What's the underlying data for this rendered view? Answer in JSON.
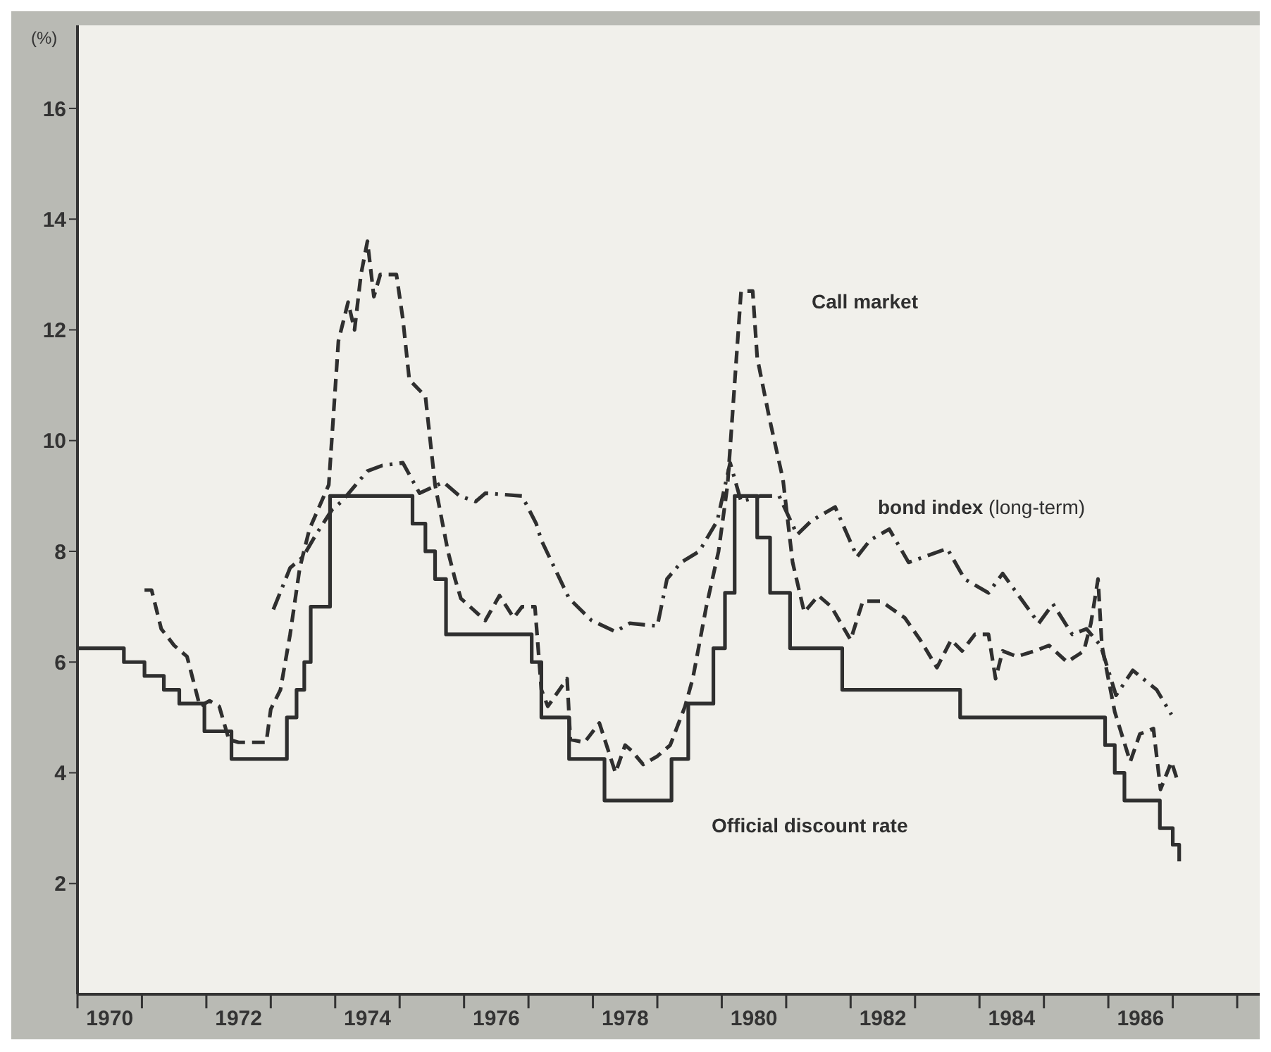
{
  "chart_data": {
    "type": "line",
    "ylabel": "(%)",
    "xlim": [
      1970,
      1988.35
    ],
    "ylim": [
      0,
      17.5
    ],
    "yticks": [
      2,
      4,
      6,
      8,
      10,
      12,
      14,
      16
    ],
    "xticks": [
      {
        "value": 1970,
        "label": null
      },
      {
        "value": 1970.5,
        "label": "1970"
      },
      {
        "value": 1971,
        "label": null
      },
      {
        "value": 1972,
        "label": null
      },
      {
        "value": 1972.5,
        "label": "1972"
      },
      {
        "value": 1973,
        "label": null
      },
      {
        "value": 1974,
        "label": null
      },
      {
        "value": 1974.5,
        "label": "1974"
      },
      {
        "value": 1975,
        "label": null
      },
      {
        "value": 1976,
        "label": null
      },
      {
        "value": 1976.5,
        "label": "1976"
      },
      {
        "value": 1977,
        "label": null
      },
      {
        "value": 1978,
        "label": null
      },
      {
        "value": 1978.5,
        "label": "1978"
      },
      {
        "value": 1979,
        "label": null
      },
      {
        "value": 1980,
        "label": null
      },
      {
        "value": 1980.5,
        "label": "1980"
      },
      {
        "value": 1981,
        "label": null
      },
      {
        "value": 1982,
        "label": null
      },
      {
        "value": 1982.5,
        "label": "1982"
      },
      {
        "value": 1983,
        "label": null
      },
      {
        "value": 1984,
        "label": null
      },
      {
        "value": 1984.5,
        "label": "1984"
      },
      {
        "value": 1985,
        "label": null
      },
      {
        "value": 1986,
        "label": null
      },
      {
        "value": 1986.5,
        "label": "1986"
      },
      {
        "value": 1987,
        "label": null
      },
      {
        "value": 1988,
        "label": null
      }
    ],
    "grid": false,
    "legend": false,
    "marker": "none",
    "series": [
      {
        "name": "Call market",
        "type": "line",
        "line_style": "dashed",
        "color": "#2f2f2f",
        "x": [
          1971.04,
          1971.15,
          1971.3,
          1971.5,
          1971.7,
          1971.9,
          1972.05,
          1972.2,
          1972.35,
          1972.5,
          1972.93,
          1973.0,
          1973.15,
          1973.3,
          1973.45,
          1973.6,
          1973.9,
          1974.05,
          1974.2,
          1974.3,
          1974.4,
          1974.5,
          1974.6,
          1974.7,
          1974.95,
          1975.05,
          1975.15,
          1975.4,
          1975.55,
          1975.75,
          1975.86,
          1975.95,
          1976.33,
          1976.55,
          1976.77,
          1976.9,
          1977.1,
          1977.2,
          1977.3,
          1977.6,
          1977.65,
          1977.87,
          1978.1,
          1978.35,
          1978.5,
          1978.6,
          1978.78,
          1979.0,
          1979.2,
          1979.43,
          1979.55,
          1979.76,
          1979.95,
          1980.09,
          1980.3,
          1980.48,
          1980.55,
          1980.74,
          1980.95,
          1981.1,
          1981.28,
          1981.5,
          1981.7,
          1982.0,
          1982.19,
          1982.47,
          1982.84,
          1983.08,
          1983.34,
          1983.56,
          1983.73,
          1983.93,
          1984.14,
          1984.25,
          1984.36,
          1984.58,
          1984.86,
          1985.08,
          1985.36,
          1985.62,
          1985.73,
          1985.84,
          1985.9,
          1986.1,
          1986.34,
          1986.49,
          1986.7,
          1986.81,
          1986.98,
          1987.09
        ],
        "values": [
          7.3,
          7.3,
          6.6,
          6.3,
          6.1,
          5.2,
          5.3,
          5.2,
          4.6,
          4.55,
          4.55,
          5.15,
          5.5,
          6.5,
          7.7,
          8.4,
          9.2,
          11.8,
          12.5,
          12.0,
          13.0,
          13.6,
          12.6,
          13.0,
          13.0,
          12.2,
          11.1,
          10.8,
          9.2,
          8.0,
          7.5,
          7.15,
          6.75,
          7.2,
          6.8,
          7.0,
          7.0,
          5.5,
          5.2,
          5.7,
          4.6,
          4.55,
          4.9,
          4.0,
          4.5,
          4.4,
          4.15,
          4.3,
          4.5,
          5.2,
          5.7,
          7.0,
          8.0,
          9.2,
          12.7,
          12.7,
          11.5,
          10.4,
          9.3,
          7.8,
          6.9,
          7.2,
          7.0,
          6.4,
          7.1,
          7.1,
          6.8,
          6.4,
          5.9,
          6.4,
          6.2,
          6.5,
          6.5,
          5.7,
          6.2,
          6.1,
          6.2,
          6.3,
          6.0,
          6.2,
          6.7,
          7.5,
          6.3,
          5.1,
          4.2,
          4.7,
          4.8,
          3.7,
          4.2,
          3.8
        ]
      },
      {
        "name": "bond index (long-term)",
        "type": "line",
        "line_style": "dashdot",
        "color": "#2f2f2f",
        "x": [
          1973.04,
          1973.3,
          1973.5,
          1973.7,
          1973.95,
          1974.1,
          1974.5,
          1974.73,
          1975.05,
          1975.31,
          1975.68,
          1975.93,
          1976.18,
          1976.33,
          1976.9,
          1977.12,
          1977.2,
          1977.63,
          1977.98,
          1978.35,
          1978.57,
          1979.0,
          1979.15,
          1979.37,
          1979.65,
          1979.93,
          1980.13,
          1980.3,
          1980.6,
          1980.89,
          1981.17,
          1981.39,
          1981.76,
          1982.1,
          1982.3,
          1982.6,
          1982.9,
          1983.5,
          1983.77,
          1984.14,
          1984.36,
          1984.92,
          1985.14,
          1985.44,
          1985.66,
          1985.88,
          1986.12,
          1986.38,
          1986.75,
          1986.98
        ],
        "values": [
          6.95,
          7.7,
          7.9,
          8.3,
          8.75,
          8.9,
          9.45,
          9.55,
          9.6,
          9.05,
          9.25,
          9.0,
          8.9,
          9.05,
          9.0,
          8.5,
          8.2,
          7.15,
          6.75,
          6.55,
          6.7,
          6.65,
          7.5,
          7.8,
          8.0,
          8.55,
          9.6,
          8.9,
          9.0,
          9.0,
          8.3,
          8.55,
          8.8,
          7.9,
          8.2,
          8.4,
          7.8,
          8.05,
          7.5,
          7.25,
          7.6,
          6.7,
          7.05,
          6.5,
          6.6,
          6.3,
          5.4,
          5.85,
          5.5,
          5.05
        ]
      },
      {
        "name": "Official discount rate",
        "type": "step",
        "line_style": "solid",
        "color": "#2f2f2f",
        "x": [
          1970.0,
          1970.72,
          1971.04,
          1971.34,
          1971.58,
          1971.97,
          1972.39,
          1973.25,
          1973.4,
          1973.52,
          1973.62,
          1973.92,
          1975.2,
          1975.4,
          1975.55,
          1975.72,
          1977.05,
          1977.2,
          1977.63,
          1978.18,
          1979.22,
          1979.48,
          1979.87,
          1980.05,
          1980.2,
          1980.55,
          1980.75,
          1981.06,
          1981.87,
          1983.7,
          1985.95,
          1986.1,
          1986.25,
          1986.8,
          1987.0,
          1987.1
        ],
        "values": [
          6.25,
          6.0,
          5.75,
          5.5,
          5.25,
          4.75,
          4.25,
          5.0,
          5.5,
          6.0,
          7.0,
          9.0,
          8.5,
          8.0,
          7.5,
          6.5,
          6.0,
          5.0,
          4.25,
          3.5,
          4.25,
          5.25,
          6.25,
          7.25,
          9.0,
          8.25,
          7.25,
          6.25,
          5.5,
          5.0,
          4.5,
          4.0,
          3.5,
          3.0,
          2.7,
          2.4
        ]
      }
    ]
  }
}
